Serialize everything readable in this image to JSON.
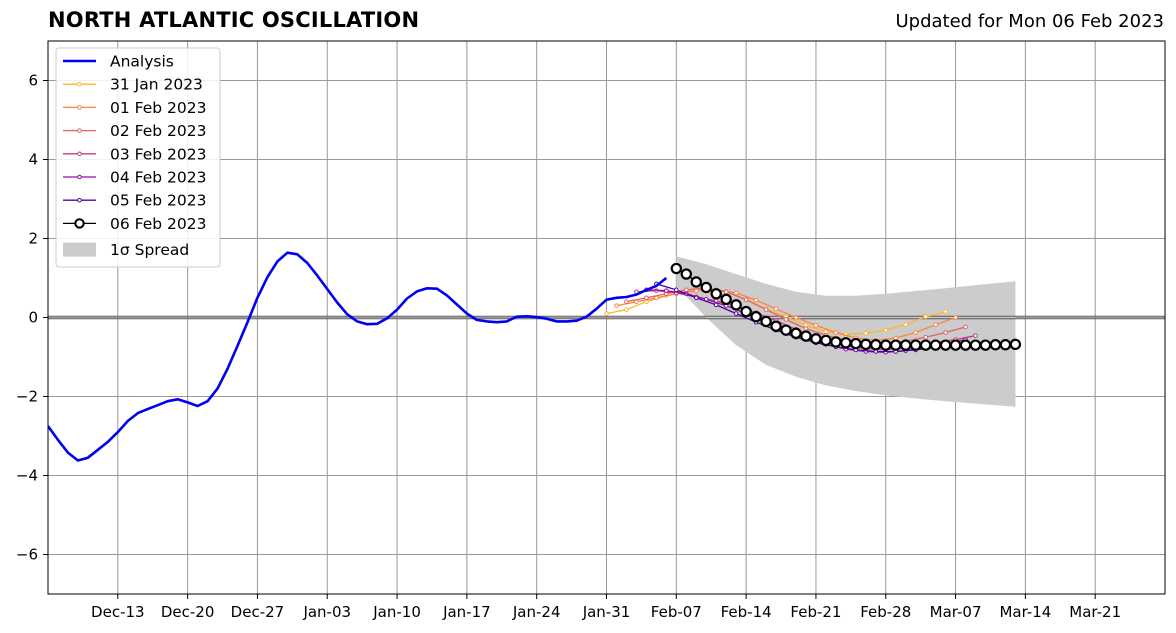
{
  "chart_data": {
    "type": "line",
    "title": "NORTH ATLANTIC OSCILLATION",
    "subtitle": "Updated for Mon 06 Feb 2023",
    "xlabel": "",
    "ylabel": "",
    "ylim": [
      -7,
      7
    ],
    "xlim": [
      "2022-12-06",
      "2023-03-28"
    ],
    "yticks": [
      -6,
      -4,
      -2,
      0,
      2,
      4,
      6
    ],
    "ytick_labels": [
      "−6",
      "−4",
      "−2",
      "0",
      "2",
      "4",
      "6"
    ],
    "xticks": [
      "2022-12-13",
      "2022-12-20",
      "2022-12-27",
      "2023-01-03",
      "2023-01-10",
      "2023-01-17",
      "2023-01-24",
      "2023-01-31",
      "2023-02-07",
      "2023-02-14",
      "2023-02-21",
      "2023-02-28",
      "2023-03-07",
      "2023-03-14",
      "2023-03-21"
    ],
    "xtick_labels": [
      "Dec-13",
      "Dec-20",
      "Dec-27",
      "Jan-03",
      "Jan-10",
      "Jan-17",
      "Jan-24",
      "Jan-31",
      "Feb-07",
      "Feb-14",
      "Feb-21",
      "Feb-28",
      "Mar-07",
      "Mar-14",
      "Mar-21"
    ],
    "grid": true,
    "legend_position": "top-left",
    "colors": {
      "analysis": "#0000ee",
      "spread": "#cccccc",
      "grid": "#999999",
      "zero_line": "#555555"
    },
    "analysis": {
      "name": "Analysis",
      "x": [
        "2022-12-06",
        "2022-12-07",
        "2022-12-08",
        "2022-12-09",
        "2022-12-10",
        "2022-12-11",
        "2022-12-12",
        "2022-12-13",
        "2022-12-14",
        "2022-12-15",
        "2022-12-16",
        "2022-12-17",
        "2022-12-18",
        "2022-12-19",
        "2022-12-20",
        "2022-12-21",
        "2022-12-22",
        "2022-12-23",
        "2022-12-24",
        "2022-12-25",
        "2022-12-26",
        "2022-12-27",
        "2022-12-28",
        "2022-12-29",
        "2022-12-30",
        "2022-12-31",
        "2023-01-01",
        "2023-01-02",
        "2023-01-03",
        "2023-01-04",
        "2023-01-05",
        "2023-01-06",
        "2023-01-07",
        "2023-01-08",
        "2023-01-09",
        "2023-01-10",
        "2023-01-11",
        "2023-01-12",
        "2023-01-13",
        "2023-01-14",
        "2023-01-15",
        "2023-01-16",
        "2023-01-17",
        "2023-01-18",
        "2023-01-19",
        "2023-01-20",
        "2023-01-21",
        "2023-01-22",
        "2023-01-23",
        "2023-01-24",
        "2023-01-25",
        "2023-01-26",
        "2023-01-27",
        "2023-01-28",
        "2023-01-29",
        "2023-01-30",
        "2023-01-31",
        "2023-02-01",
        "2023-02-02",
        "2023-02-03",
        "2023-02-04",
        "2023-02-05",
        "2023-02-06"
      ],
      "y": [
        -2.75,
        -3.1,
        -3.42,
        -3.62,
        -3.55,
        -3.35,
        -3.15,
        -2.9,
        -2.62,
        -2.42,
        -2.32,
        -2.22,
        -2.12,
        -2.07,
        -2.15,
        -2.24,
        -2.12,
        -1.8,
        -1.3,
        -0.72,
        -0.12,
        0.5,
        1.02,
        1.42,
        1.64,
        1.6,
        1.38,
        1.06,
        0.72,
        0.38,
        0.08,
        -0.1,
        -0.17,
        -0.16,
        -0.02,
        0.2,
        0.48,
        0.66,
        0.74,
        0.73,
        0.56,
        0.33,
        0.1,
        -0.06,
        -0.1,
        -0.12,
        -0.1,
        0.02,
        0.03,
        0.01,
        -0.03,
        -0.1,
        -0.1,
        -0.08,
        0.02,
        0.22,
        0.45,
        0.5,
        0.52,
        0.58,
        0.7,
        0.8,
        1.0
      ]
    },
    "forecasts": [
      {
        "name": "31 Jan 2023",
        "color": "#ffb52c",
        "x": [
          "2023-01-31",
          "2023-02-02",
          "2023-02-04",
          "2023-02-06",
          "2023-02-08",
          "2023-02-10",
          "2023-02-12",
          "2023-02-14",
          "2023-02-16",
          "2023-02-18",
          "2023-02-20",
          "2023-02-22",
          "2023-02-24",
          "2023-02-26",
          "2023-02-28",
          "2023-03-02",
          "2023-03-04",
          "2023-03-06"
        ],
        "y": [
          0.1,
          0.2,
          0.4,
          0.55,
          0.66,
          0.72,
          0.66,
          0.46,
          0.22,
          0.02,
          -0.2,
          -0.36,
          -0.42,
          -0.4,
          -0.32,
          -0.18,
          0.02,
          0.15
        ]
      },
      {
        "name": "01 Feb 2023",
        "color": "#fb8444",
        "x": [
          "2023-02-01",
          "2023-02-03",
          "2023-02-05",
          "2023-02-07",
          "2023-02-09",
          "2023-02-11",
          "2023-02-13",
          "2023-02-15",
          "2023-02-17",
          "2023-02-19",
          "2023-02-21",
          "2023-02-23",
          "2023-02-25",
          "2023-02-27",
          "2023-03-01",
          "2023-03-03",
          "2023-03-05",
          "2023-03-07"
        ],
        "y": [
          0.3,
          0.4,
          0.5,
          0.6,
          0.68,
          0.7,
          0.62,
          0.44,
          0.22,
          0.0,
          -0.2,
          -0.38,
          -0.52,
          -0.58,
          -0.52,
          -0.38,
          -0.18,
          0.0
        ]
      },
      {
        "name": "02 Feb 2023",
        "color": "#e3616b",
        "x": [
          "2023-02-02",
          "2023-02-04",
          "2023-02-06",
          "2023-02-08",
          "2023-02-10",
          "2023-02-12",
          "2023-02-14",
          "2023-02-16",
          "2023-02-18",
          "2023-02-20",
          "2023-02-22",
          "2023-02-24",
          "2023-02-26",
          "2023-02-28",
          "2023-03-02",
          "2023-03-04",
          "2023-03-06",
          "2023-03-08"
        ],
        "y": [
          0.4,
          0.5,
          0.6,
          0.7,
          0.75,
          0.65,
          0.45,
          0.2,
          -0.05,
          -0.28,
          -0.45,
          -0.58,
          -0.66,
          -0.66,
          -0.6,
          -0.5,
          -0.38,
          -0.24
        ]
      },
      {
        "name": "03 Feb 2023",
        "color": "#c13b82",
        "x": [
          "2023-02-03",
          "2023-02-05",
          "2023-02-07",
          "2023-02-09",
          "2023-02-11",
          "2023-02-13",
          "2023-02-15",
          "2023-02-17",
          "2023-02-19",
          "2023-02-21",
          "2023-02-23",
          "2023-02-25",
          "2023-02-27",
          "2023-03-01",
          "2023-03-03",
          "2023-03-05",
          "2023-03-07",
          "2023-03-09"
        ],
        "y": [
          0.65,
          0.68,
          0.62,
          0.52,
          0.42,
          0.3,
          0.12,
          -0.08,
          -0.3,
          -0.5,
          -0.66,
          -0.76,
          -0.8,
          -0.8,
          -0.74,
          -0.64,
          -0.56,
          -0.46
        ]
      },
      {
        "name": "04 Feb 2023",
        "color": "#8f0da4",
        "x": [
          "2023-02-04",
          "2023-02-06",
          "2023-02-08",
          "2023-02-10",
          "2023-02-12",
          "2023-02-14",
          "2023-02-16",
          "2023-02-18",
          "2023-02-20",
          "2023-02-22",
          "2023-02-24",
          "2023-02-26",
          "2023-02-28",
          "2023-03-02",
          "2023-03-04",
          "2023-03-06",
          "2023-03-08"
        ],
        "y": [
          0.7,
          0.68,
          0.6,
          0.46,
          0.3,
          0.1,
          -0.1,
          -0.32,
          -0.52,
          -0.68,
          -0.8,
          -0.86,
          -0.88,
          -0.84,
          -0.76,
          -0.66,
          -0.56
        ]
      },
      {
        "name": "05 Feb 2023",
        "color": "#4b03a1",
        "x": [
          "2023-02-05",
          "2023-02-07",
          "2023-02-09",
          "2023-02-11",
          "2023-02-13",
          "2023-02-15",
          "2023-02-17",
          "2023-02-19",
          "2023-02-21",
          "2023-02-23",
          "2023-02-25",
          "2023-02-27",
          "2023-03-01",
          "2023-03-03",
          "2023-03-05",
          "2023-03-07",
          "2023-03-09"
        ],
        "y": [
          0.85,
          0.7,
          0.5,
          0.32,
          0.1,
          -0.12,
          -0.32,
          -0.5,
          -0.64,
          -0.74,
          -0.82,
          -0.86,
          -0.86,
          -0.82,
          -0.76,
          -0.7,
          -0.66
        ]
      },
      {
        "name": "06 Feb 2023",
        "color": "#000000",
        "x": [
          "2023-02-07",
          "2023-02-08",
          "2023-02-09",
          "2023-02-10",
          "2023-02-11",
          "2023-02-12",
          "2023-02-13",
          "2023-02-14",
          "2023-02-15",
          "2023-02-16",
          "2023-02-17",
          "2023-02-18",
          "2023-02-19",
          "2023-02-20",
          "2023-02-21",
          "2023-02-22",
          "2023-02-23",
          "2023-02-24",
          "2023-02-25",
          "2023-02-26",
          "2023-02-27",
          "2023-02-28",
          "2023-03-01",
          "2023-03-02",
          "2023-03-03",
          "2023-03-04",
          "2023-03-05",
          "2023-03-06",
          "2023-03-07",
          "2023-03-08",
          "2023-03-09",
          "2023-03-10",
          "2023-03-11",
          "2023-03-12",
          "2023-03-13"
        ],
        "y": [
          1.24,
          1.1,
          0.9,
          0.76,
          0.6,
          0.46,
          0.32,
          0.15,
          0.02,
          -0.1,
          -0.22,
          -0.32,
          -0.4,
          -0.47,
          -0.54,
          -0.58,
          -0.62,
          -0.64,
          -0.66,
          -0.68,
          -0.69,
          -0.7,
          -0.7,
          -0.7,
          -0.7,
          -0.7,
          -0.7,
          -0.7,
          -0.7,
          -0.7,
          -0.7,
          -0.7,
          -0.69,
          -0.69,
          -0.68
        ]
      }
    ],
    "spread": {
      "name": "1σ Spread",
      "x": [
        "2023-02-07",
        "2023-02-10",
        "2023-02-13",
        "2023-02-16",
        "2023-02-19",
        "2023-02-22",
        "2023-02-25",
        "2023-02-28",
        "2023-03-03",
        "2023-03-06",
        "2023-03-09",
        "2023-03-13"
      ],
      "upper": [
        1.55,
        1.35,
        1.1,
        0.85,
        0.65,
        0.55,
        0.55,
        0.6,
        0.67,
        0.74,
        0.82,
        0.92
      ],
      "lower": [
        0.8,
        0.0,
        -0.7,
        -1.2,
        -1.5,
        -1.72,
        -1.86,
        -1.97,
        -2.05,
        -2.12,
        -2.18,
        -2.26
      ]
    }
  }
}
